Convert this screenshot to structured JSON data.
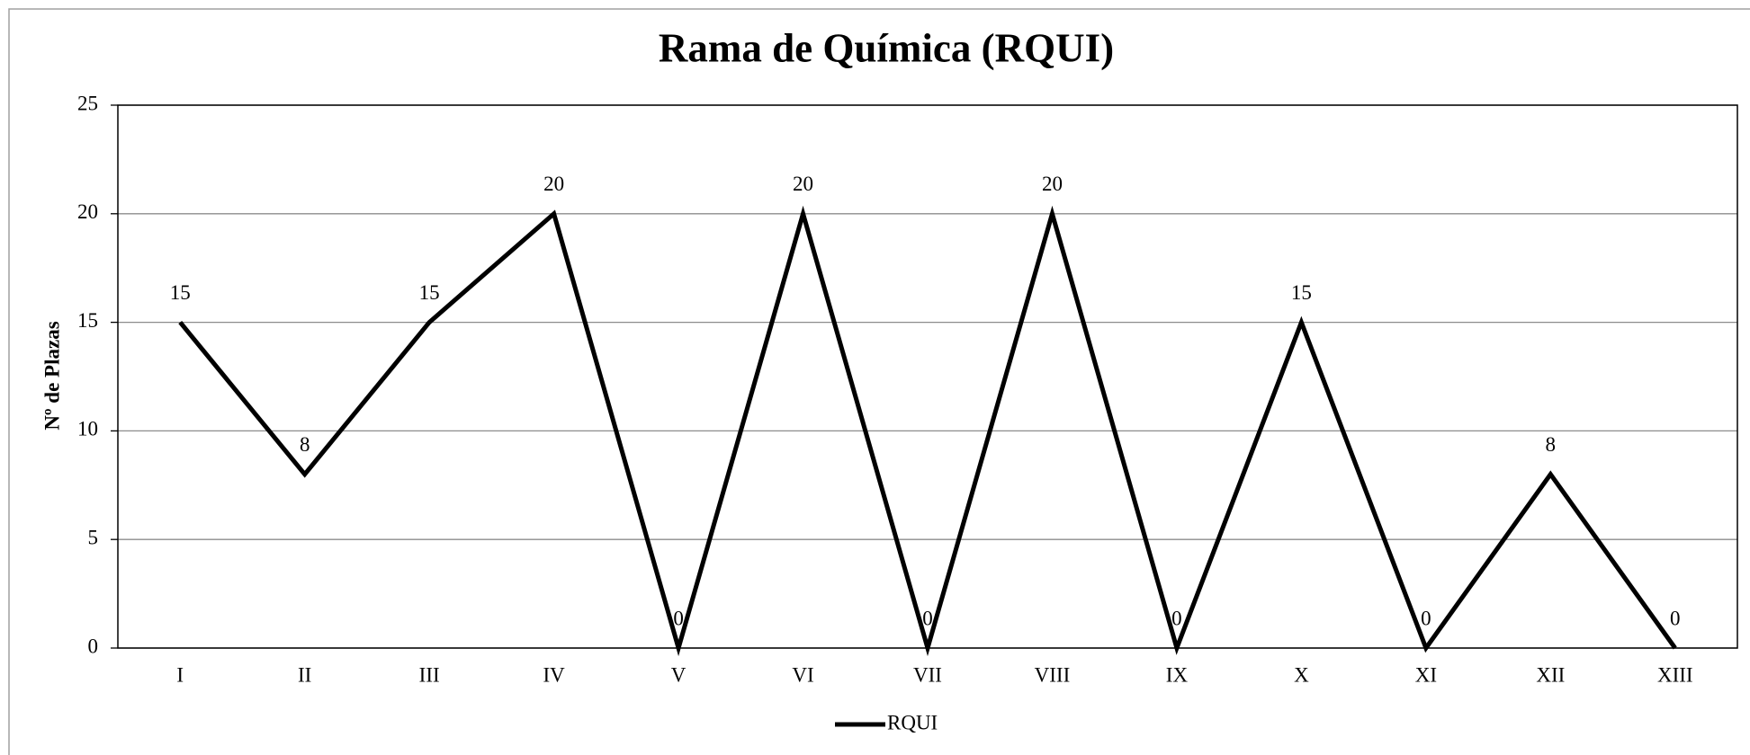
{
  "chart_data": {
    "type": "line",
    "title": "Rama de Química (RQUI)",
    "y_label": "Nº de Plazas",
    "categories": [
      "I",
      "II",
      "III",
      "IV",
      "V",
      "VI",
      "VII",
      "VIII",
      "IX",
      "X",
      "XI",
      "XII",
      "XIII"
    ],
    "series": [
      {
        "name": "RQUI",
        "color": "#000000",
        "values": [
          15,
          8,
          15,
          20,
          0,
          20,
          0,
          20,
          0,
          15,
          0,
          8,
          0
        ]
      }
    ],
    "ylim": [
      0,
      25
    ],
    "yticks": [
      0,
      5,
      10,
      15,
      20,
      25
    ],
    "grid": true,
    "legend": "bottom"
  }
}
